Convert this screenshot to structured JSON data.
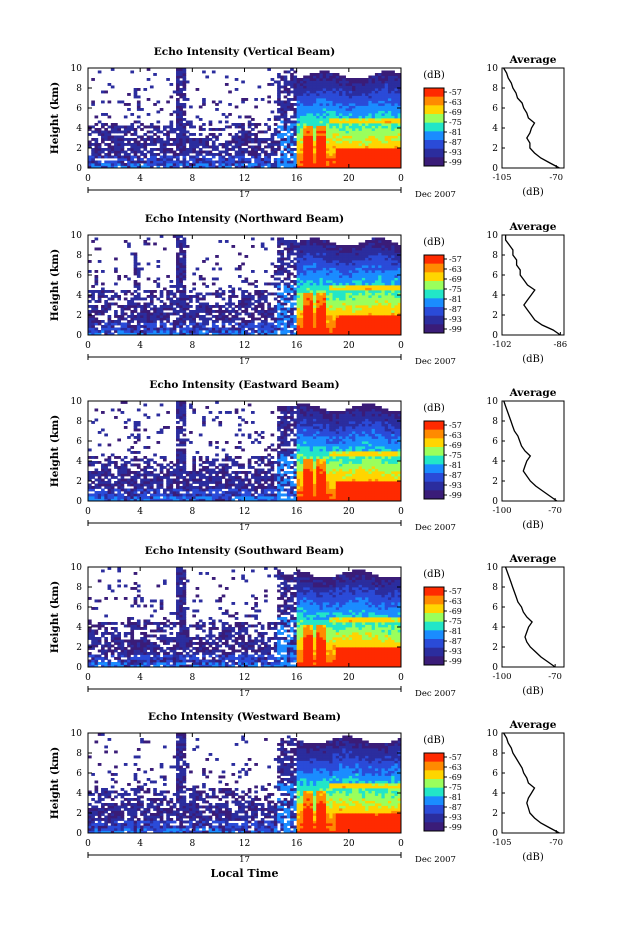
{
  "figure": {
    "xlabel": "Local Time",
    "colorbar_label": "(dB)",
    "avg_title": "Average",
    "avg_xlabel": "(dB)",
    "date_day": "17",
    "date_month": "Dec 2007",
    "ylabel": "Height (km)"
  },
  "chart_data": [
    {
      "type": "heatmap",
      "title": "Echo Intensity (Vertical Beam)",
      "x_ticks": [
        "0",
        "4",
        "8",
        "12",
        "16",
        "20",
        "0"
      ],
      "xlim": [
        0,
        24
      ],
      "y_ticks": [
        "0",
        "2",
        "4",
        "6",
        "8",
        "10"
      ],
      "ylim": [
        0,
        10
      ],
      "colorbar_ticks": [
        "-57",
        "-63",
        "-69",
        "-75",
        "-81",
        "-87",
        "-93",
        "-99"
      ],
      "avg_x_ticks": [
        "-105",
        "-70"
      ],
      "avg_xlim": [
        -105,
        -65
      ],
      "avg_profile": {
        "height": [
          0,
          0.5,
          1,
          1.5,
          2,
          2.5,
          3,
          3.5,
          4,
          4.5,
          5,
          5.5,
          6,
          6.5,
          7,
          7.5,
          8,
          8.5,
          9,
          9.5,
          10
        ],
        "db": [
          -68,
          -74,
          -80,
          -84,
          -87,
          -87,
          -89,
          -87,
          -86,
          -84,
          -88,
          -89,
          -91,
          -92,
          -95,
          -96,
          -98,
          -99,
          -101,
          -102,
          -104
        ]
      }
    },
    {
      "type": "heatmap",
      "title": "Echo Intensity (Northward Beam)",
      "x_ticks": [
        "0",
        "4",
        "8",
        "12",
        "16",
        "20",
        "0"
      ],
      "xlim": [
        0,
        24
      ],
      "y_ticks": [
        "0",
        "2",
        "4",
        "6",
        "8",
        "10"
      ],
      "ylim": [
        0,
        10
      ],
      "colorbar_ticks": [
        "-57",
        "-63",
        "-69",
        "-75",
        "-81",
        "-87",
        "-93",
        "-99"
      ],
      "avg_x_ticks": [
        "-102",
        "-86"
      ],
      "avg_xlim": [
        -102,
        -85
      ],
      "avg_profile": {
        "height": [
          0,
          0.5,
          1,
          1.5,
          2,
          2.5,
          3,
          3.5,
          4,
          4.5,
          5,
          5.5,
          6,
          6.5,
          7,
          7.5,
          8,
          8.5,
          9,
          9.5,
          10
        ],
        "db": [
          -86,
          -88,
          -91,
          -93,
          -94,
          -95,
          -96,
          -95,
          -94,
          -93,
          -95,
          -96,
          -97,
          -97,
          -98,
          -98,
          -99,
          -99,
          -100,
          -101,
          -101
        ]
      }
    },
    {
      "type": "heatmap",
      "title": "Echo Intensity (Eastward Beam)",
      "x_ticks": [
        "0",
        "4",
        "8",
        "12",
        "16",
        "20",
        "0"
      ],
      "xlim": [
        0,
        24
      ],
      "y_ticks": [
        "0",
        "2",
        "4",
        "6",
        "8",
        "10"
      ],
      "ylim": [
        0,
        10
      ],
      "colorbar_ticks": [
        "-57",
        "-63",
        "-69",
        "-75",
        "-81",
        "-87",
        "-93",
        "-99"
      ],
      "avg_x_ticks": [
        "-100",
        "-70"
      ],
      "avg_xlim": [
        -100,
        -65
      ],
      "avg_profile": {
        "height": [
          0,
          0.5,
          1,
          1.5,
          2,
          2.5,
          3,
          3.5,
          4,
          4.5,
          5,
          5.5,
          6,
          6.5,
          7,
          7.5,
          8,
          8.5,
          9,
          9.5,
          10
        ],
        "db": [
          -69,
          -73,
          -77,
          -81,
          -84,
          -86,
          -88,
          -87,
          -86,
          -84,
          -87,
          -89,
          -90,
          -91,
          -93,
          -94,
          -95,
          -96,
          -97,
          -98,
          -99
        ]
      }
    },
    {
      "type": "heatmap",
      "title": "Echo Intensity (Southward Beam)",
      "x_ticks": [
        "0",
        "4",
        "8",
        "12",
        "16",
        "20",
        "0"
      ],
      "xlim": [
        0,
        24
      ],
      "y_ticks": [
        "0",
        "2",
        "4",
        "6",
        "8",
        "10"
      ],
      "ylim": [
        0,
        10
      ],
      "colorbar_ticks": [
        "-57",
        "-63",
        "-69",
        "-75",
        "-81",
        "-87",
        "-93",
        "-99"
      ],
      "avg_x_ticks": [
        "-100",
        "-70"
      ],
      "avg_xlim": [
        -100,
        -65
      ],
      "avg_profile": {
        "height": [
          0,
          0.5,
          1,
          1.5,
          2,
          2.5,
          3,
          3.5,
          4,
          4.5,
          5,
          5.5,
          6,
          6.5,
          7,
          7.5,
          8,
          8.5,
          9,
          9.5,
          10
        ],
        "db": [
          -70,
          -74,
          -78,
          -81,
          -84,
          -86,
          -87,
          -86,
          -85,
          -83,
          -86,
          -88,
          -89,
          -91,
          -92,
          -93,
          -94,
          -95,
          -96,
          -97,
          -98
        ]
      }
    },
    {
      "type": "heatmap",
      "title": "Echo Intensity (Westward Beam)",
      "x_ticks": [
        "0",
        "4",
        "8",
        "12",
        "16",
        "20",
        "0"
      ],
      "xlim": [
        0,
        24
      ],
      "y_ticks": [
        "0",
        "2",
        "4",
        "6",
        "8",
        "10"
      ],
      "ylim": [
        0,
        10
      ],
      "colorbar_ticks": [
        "-57",
        "-63",
        "-69",
        "-75",
        "-81",
        "-87",
        "-93",
        "-99"
      ],
      "avg_x_ticks": [
        "-105",
        "-70"
      ],
      "avg_xlim": [
        -105,
        -65
      ],
      "avg_profile": {
        "height": [
          0,
          0.5,
          1,
          1.5,
          2,
          2.5,
          3,
          3.5,
          4,
          4.5,
          5,
          5.5,
          6,
          6.5,
          7,
          7.5,
          8,
          8.5,
          9,
          9.5,
          10
        ],
        "db": [
          -68,
          -74,
          -80,
          -84,
          -87,
          -88,
          -89,
          -88,
          -86,
          -84,
          -88,
          -89,
          -91,
          -92,
          -94,
          -96,
          -98,
          -99,
          -101,
          -102,
          -104
        ]
      }
    }
  ],
  "colors": {
    "scale": [
      "#ff2a00",
      "#ff8a00",
      "#ffd500",
      "#9aff5c",
      "#22e6c8",
      "#1a8cff",
      "#2a4bd8",
      "#2b2d9e",
      "#3a1c78"
    ]
  }
}
